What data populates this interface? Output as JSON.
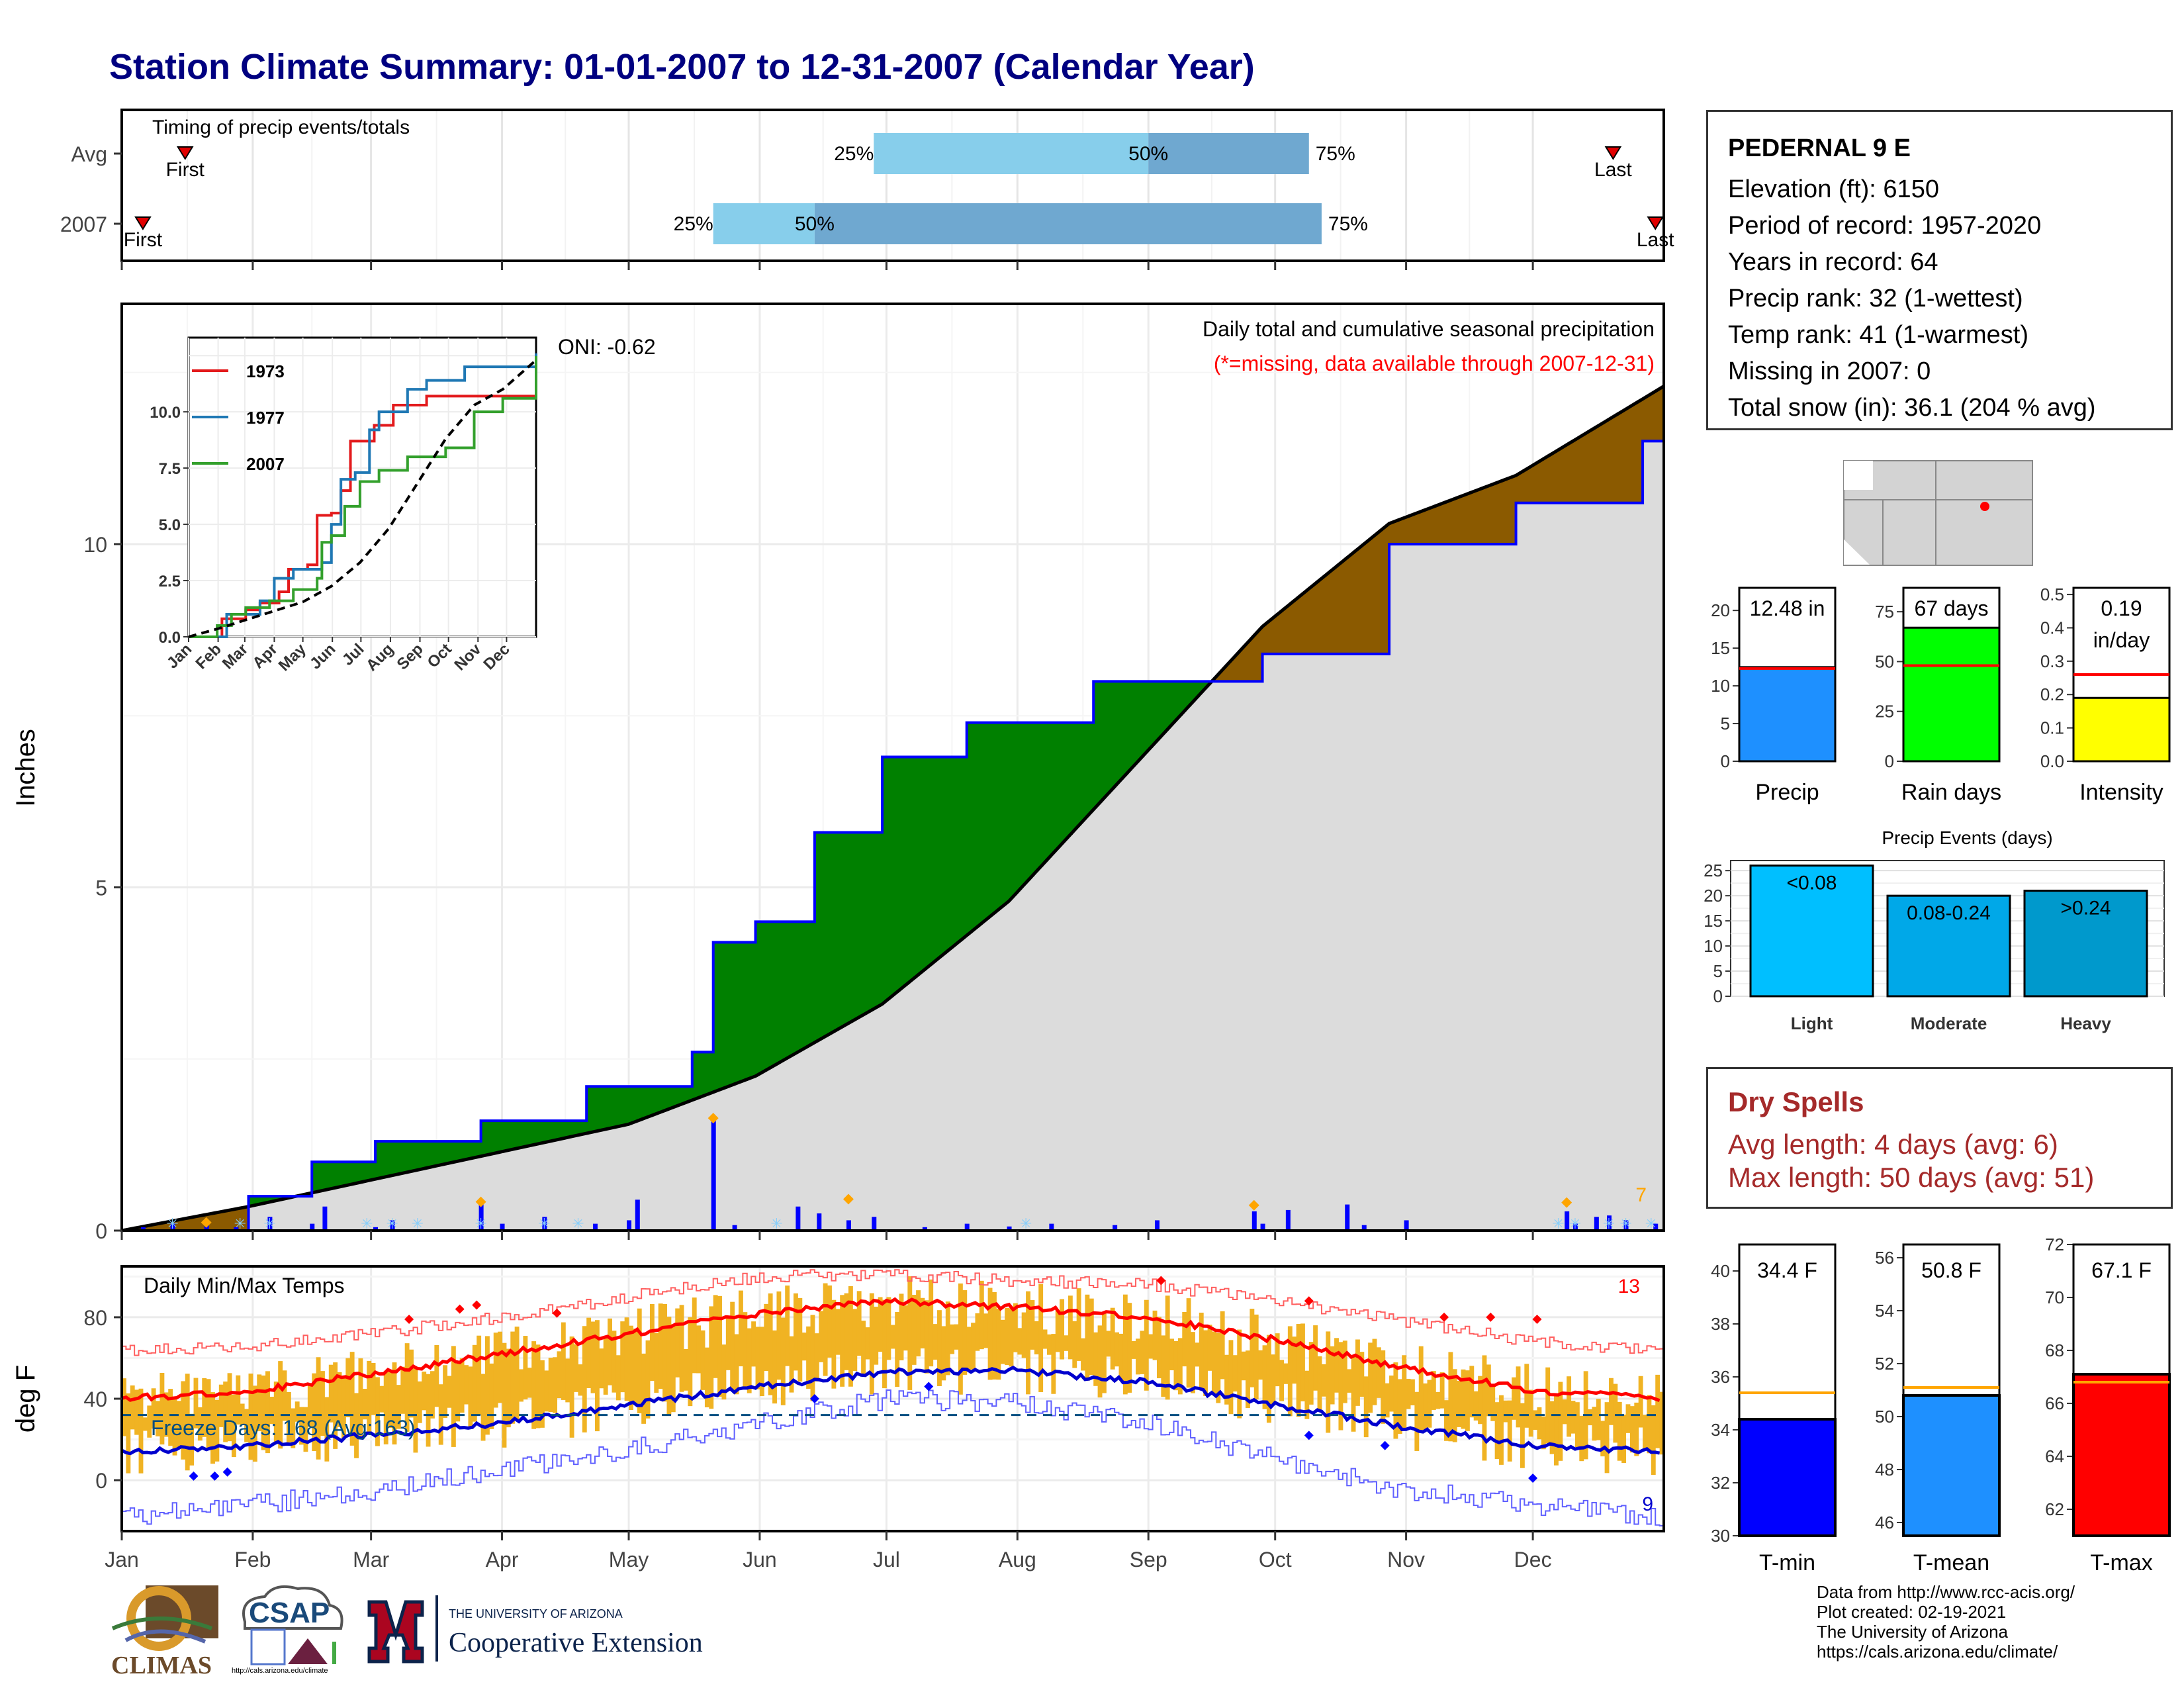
{
  "title": "Station Climate Summary: 01-01-2007 to 12-31-2007 (Calendar Year)",
  "month_labels": [
    "Jan",
    "Feb",
    "Mar",
    "Apr",
    "May",
    "Jun",
    "Jul",
    "Aug",
    "Sep",
    "Oct",
    "Nov",
    "Dec"
  ],
  "timing_panel": {
    "title": "Timing of precip events/totals",
    "rows": [
      {
        "label": "Avg",
        "first_day": 15,
        "p25_day": 178,
        "p50_day": 243,
        "p75_day": 281,
        "last_day": 353,
        "first_label": "First",
        "last_label": "Last",
        "p25_label": "25%",
        "p50_label": "50%",
        "p75_label": "75%"
      },
      {
        "label": "2007",
        "first_day": 5,
        "p25_day": 140,
        "p50_day": 164,
        "p75_day": 284,
        "last_day": 363,
        "first_label": "First",
        "last_label": "Last",
        "p25_label": "25%",
        "p50_label": "50%",
        "p75_label": "75%"
      }
    ]
  },
  "precip_panel": {
    "ylabel": "Inches",
    "title": "Daily total and cumulative seasonal precipitation",
    "subtitle": "(*=missing, data available through 2007-12-31)",
    "oni": "ONI: -0.62",
    "count_label": "7",
    "yticks": [
      "0",
      "5",
      "10"
    ],
    "colors": {
      "above": "#008000",
      "below": "#8B5A00",
      "avg_fill": "#dcdcdc",
      "obs_line": "#0000ff",
      "daily_bar": "#0000ff"
    }
  },
  "inset": {
    "yticks": [
      "0.0",
      "2.5",
      "5.0",
      "7.5",
      "10.0"
    ],
    "xticks": [
      "Jan",
      "Feb",
      "Mar",
      "Apr",
      "May",
      "Jun",
      "Jul",
      "Aug",
      "Sep",
      "Oct",
      "Nov",
      "Dec"
    ],
    "legend": [
      {
        "name": "1973",
        "color": "#e31a1c"
      },
      {
        "name": "1977",
        "color": "#1f78b4"
      },
      {
        "name": "2007",
        "color": "#33a02c"
      }
    ]
  },
  "temp_panel": {
    "ylabel": "deg F",
    "title": "Daily Min/Max Temps",
    "freeze_label": "Freeze Days: 168 (Avg:163)",
    "max_count_label": "13",
    "min_count_label": "9",
    "yticks": [
      "0",
      "40",
      "80"
    ]
  },
  "station": {
    "name": "PEDERNAL 9 E",
    "lines": [
      "Elevation (ft): 6150",
      "Period of record: 1957-2020",
      "Years in record: 64",
      "Precip rank: 32 (1-wettest)",
      "Temp rank: 41 (1-warmest)",
      "Missing in 2007: 0",
      "Total snow (in): 36.1 (204 % avg)"
    ]
  },
  "precip_stats": [
    {
      "label": "Precip",
      "value_label": "12.48 in",
      "value": 12.48,
      "avg": 12.3,
      "ymax": 23,
      "yticks": [
        "0",
        "5",
        "10",
        "15",
        "20"
      ],
      "tick_vals": [
        0,
        5,
        10,
        15,
        20
      ],
      "color": "#1e90ff"
    },
    {
      "label": "Rain days",
      "value_label": "67 days",
      "value": 67,
      "avg": 48,
      "ymax": 87,
      "yticks": [
        "0",
        "25",
        "50",
        "75"
      ],
      "tick_vals": [
        0,
        25,
        50,
        75
      ],
      "color": "#00ff00"
    },
    {
      "label": "Intensity",
      "value_label": "0.19",
      "value_label2": "in/day",
      "value": 0.19,
      "avg": 0.26,
      "ymax": 0.52,
      "yticks": [
        "0.0",
        "0.1",
        "0.2",
        "0.3",
        "0.4",
        "0.5"
      ],
      "tick_vals": [
        0,
        0.1,
        0.2,
        0.3,
        0.4,
        0.5
      ],
      "color": "#ffff00"
    }
  ],
  "precip_events": {
    "title": "Precip Events (days)",
    "yticks": [
      "0",
      "5",
      "10",
      "15",
      "20",
      "25"
    ],
    "bars": [
      {
        "category": "Light",
        "label": "<0.08",
        "value": 26,
        "color": "#00bfff"
      },
      {
        "category": "Moderate",
        "label": "0.08-0.24",
        "value": 20,
        "color": "#00a8e8"
      },
      {
        "category": "Heavy",
        "label": ">0.24",
        "value": 21,
        "color": "#0099cc"
      }
    ]
  },
  "dry_spells": {
    "title": "Dry Spells",
    "line1": "Avg length: 4 days (avg: 6)",
    "line2": "Max length: 50 days (avg: 51)"
  },
  "temp_stats": [
    {
      "label": "T-min",
      "value_label": "34.4 F",
      "value": 34.4,
      "avg": 35.4,
      "ymin": 30,
      "ymax": 41,
      "yticks": [
        "30",
        "32",
        "34",
        "36",
        "38",
        "40"
      ],
      "tick_vals": [
        30,
        32,
        34,
        36,
        38,
        40
      ],
      "color": "#0000ff"
    },
    {
      "label": "T-mean",
      "value_label": "50.8 F",
      "value": 50.8,
      "avg": 51.1,
      "ymin": 45.5,
      "ymax": 56.5,
      "yticks": [
        "46",
        "48",
        "50",
        "52",
        "54",
        "56"
      ],
      "tick_vals": [
        46,
        48,
        50,
        52,
        54,
        56
      ],
      "color": "#1e90ff"
    },
    {
      "label": "T-max",
      "value_label": "67.1 F",
      "value": 67.1,
      "avg": 66.8,
      "ymin": 61,
      "ymax": 72,
      "yticks": [
        "62",
        "64",
        "66",
        "68",
        "70",
        "72"
      ],
      "tick_vals": [
        62,
        64,
        66,
        68,
        70,
        72
      ],
      "color": "#ff0000"
    }
  ],
  "footer": [
    "Data from http://www.rcc-acis.org/",
    "Plot created: 02-19-2021",
    "The University of Arizona",
    "https://cals.arizona.edu/climate/"
  ],
  "logos": {
    "climas": "CLIMAS",
    "csap": "CSAP",
    "csap_url": "http://cals.arizona.edu/climate",
    "ua_small": "THE UNIVERSITY OF ARIZONA",
    "ua_big": "Cooperative Extension"
  },
  "chart_data": [
    {
      "type": "area",
      "title": "Daily total and cumulative seasonal precipitation",
      "ylabel": "Inches",
      "ylim": [
        0,
        13.5
      ],
      "observed_cumulative": {
        "day": [
          0,
          30,
          45,
          60,
          85,
          110,
          135,
          140,
          150,
          164,
          180,
          200,
          230,
          270,
          300,
          330,
          360,
          365
        ],
        "value": [
          0,
          0.5,
          1.0,
          1.3,
          1.6,
          2.1,
          2.6,
          4.2,
          4.5,
          5.8,
          6.9,
          7.4,
          8.0,
          8.4,
          10.0,
          10.6,
          11.5,
          12.48
        ]
      },
      "average_cumulative": {
        "day": [
          0,
          30,
          60,
          90,
          120,
          150,
          180,
          210,
          240,
          270,
          300,
          330,
          365
        ],
        "value": [
          0,
          0.35,
          0.75,
          1.15,
          1.55,
          2.25,
          3.3,
          4.8,
          6.8,
          8.8,
          10.3,
          11.0,
          12.3
        ]
      },
      "daily_precip": {
        "day": [
          5,
          12,
          20,
          27,
          35,
          45,
          48,
          60,
          64,
          85,
          90,
          100,
          112,
          120,
          122,
          140,
          145,
          160,
          165,
          172,
          178,
          190,
          200,
          210,
          220,
          235,
          245,
          268,
          270,
          276,
          290,
          294,
          304,
          342,
          344,
          349,
          352,
          356,
          363
        ],
        "value": [
          0.05,
          0.1,
          0.15,
          0.05,
          0.2,
          0.1,
          0.35,
          0.05,
          0.15,
          0.4,
          0.1,
          0.2,
          0.1,
          0.15,
          0.45,
          1.6,
          0.08,
          0.35,
          0.25,
          0.15,
          0.2,
          0.05,
          0.1,
          0.06,
          0.1,
          0.08,
          0.15,
          0.28,
          0.1,
          0.3,
          0.38,
          0.08,
          0.15,
          0.28,
          0.1,
          0.2,
          0.22,
          0.15,
          0.1
        ]
      }
    },
    {
      "type": "line",
      "title": "Daily Min/Max Temps",
      "ylabel": "deg F",
      "ylim": [
        -25,
        105
      ],
      "x": [
        0,
        31,
        59,
        90,
        120,
        151,
        181,
        212,
        243,
        273,
        304,
        334,
        365
      ],
      "series": [
        {
          "name": "Record high",
          "values": [
            63,
            66,
            72,
            80,
            90,
            100,
            101,
            98,
            96,
            88,
            78,
            68,
            63
          ]
        },
        {
          "name": "Average max",
          "values": [
            40,
            44,
            52,
            62,
            72,
            82,
            88,
            85,
            80,
            69,
            55,
            44,
            40
          ]
        },
        {
          "name": "Average min",
          "values": [
            14,
            17,
            22,
            28,
            37,
            46,
            53,
            54,
            48,
            37,
            26,
            17,
            14
          ]
        },
        {
          "name": "Record low",
          "values": [
            -18,
            -12,
            -5,
            5,
            15,
            28,
            40,
            38,
            28,
            10,
            -5,
            -12,
            -18
          ]
        }
      ],
      "freeze_threshold": 32
    }
  ]
}
